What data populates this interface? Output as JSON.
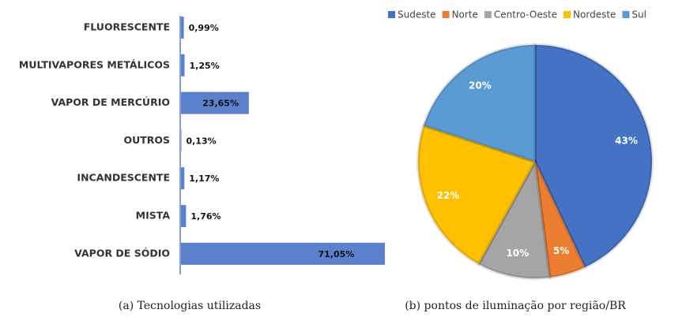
{
  "chart_data": [
    {
      "type": "bar",
      "orientation": "horizontal",
      "caption": "(a) Tecnologias utilizadas",
      "categories": [
        "FLUORESCENTE",
        "MULTIVAPORES METÁLICOS",
        "VAPOR DE MERCÚRIO",
        "OUTROS",
        "INCANDESCENTE",
        "MISTA",
        "VAPOR DE SÓDIO"
      ],
      "values": [
        0.99,
        1.25,
        23.65,
        0.13,
        1.17,
        1.76,
        71.05
      ],
      "value_labels": [
        "0,99%",
        "1,25%",
        "23,65%",
        "0,13%",
        "1,17%",
        "1,76%",
        "71,05%"
      ],
      "color": "#5b80cc"
    },
    {
      "type": "pie",
      "caption": "(b) pontos de iluminação por região/BR",
      "legend": "top",
      "series": [
        {
          "name": "Sudeste",
          "color": "#4472c4",
          "values": [
            43
          ],
          "value_labels": [
            "43%"
          ]
        },
        {
          "name": "Norte",
          "color": "#ed7d31",
          "values": [
            5
          ],
          "value_labels": [
            "5%"
          ]
        },
        {
          "name": "Centro-Oeste",
          "color": "#a5a5a5",
          "values": [
            10
          ],
          "value_labels": [
            "10%"
          ]
        },
        {
          "name": "Nordeste",
          "color": "#ffc000",
          "values": [
            22
          ],
          "value_labels": [
            "22%"
          ]
        },
        {
          "name": "Sul",
          "color": "#5b9bd5",
          "values": [
            20
          ],
          "value_labels": [
            "20%"
          ]
        }
      ]
    }
  ]
}
